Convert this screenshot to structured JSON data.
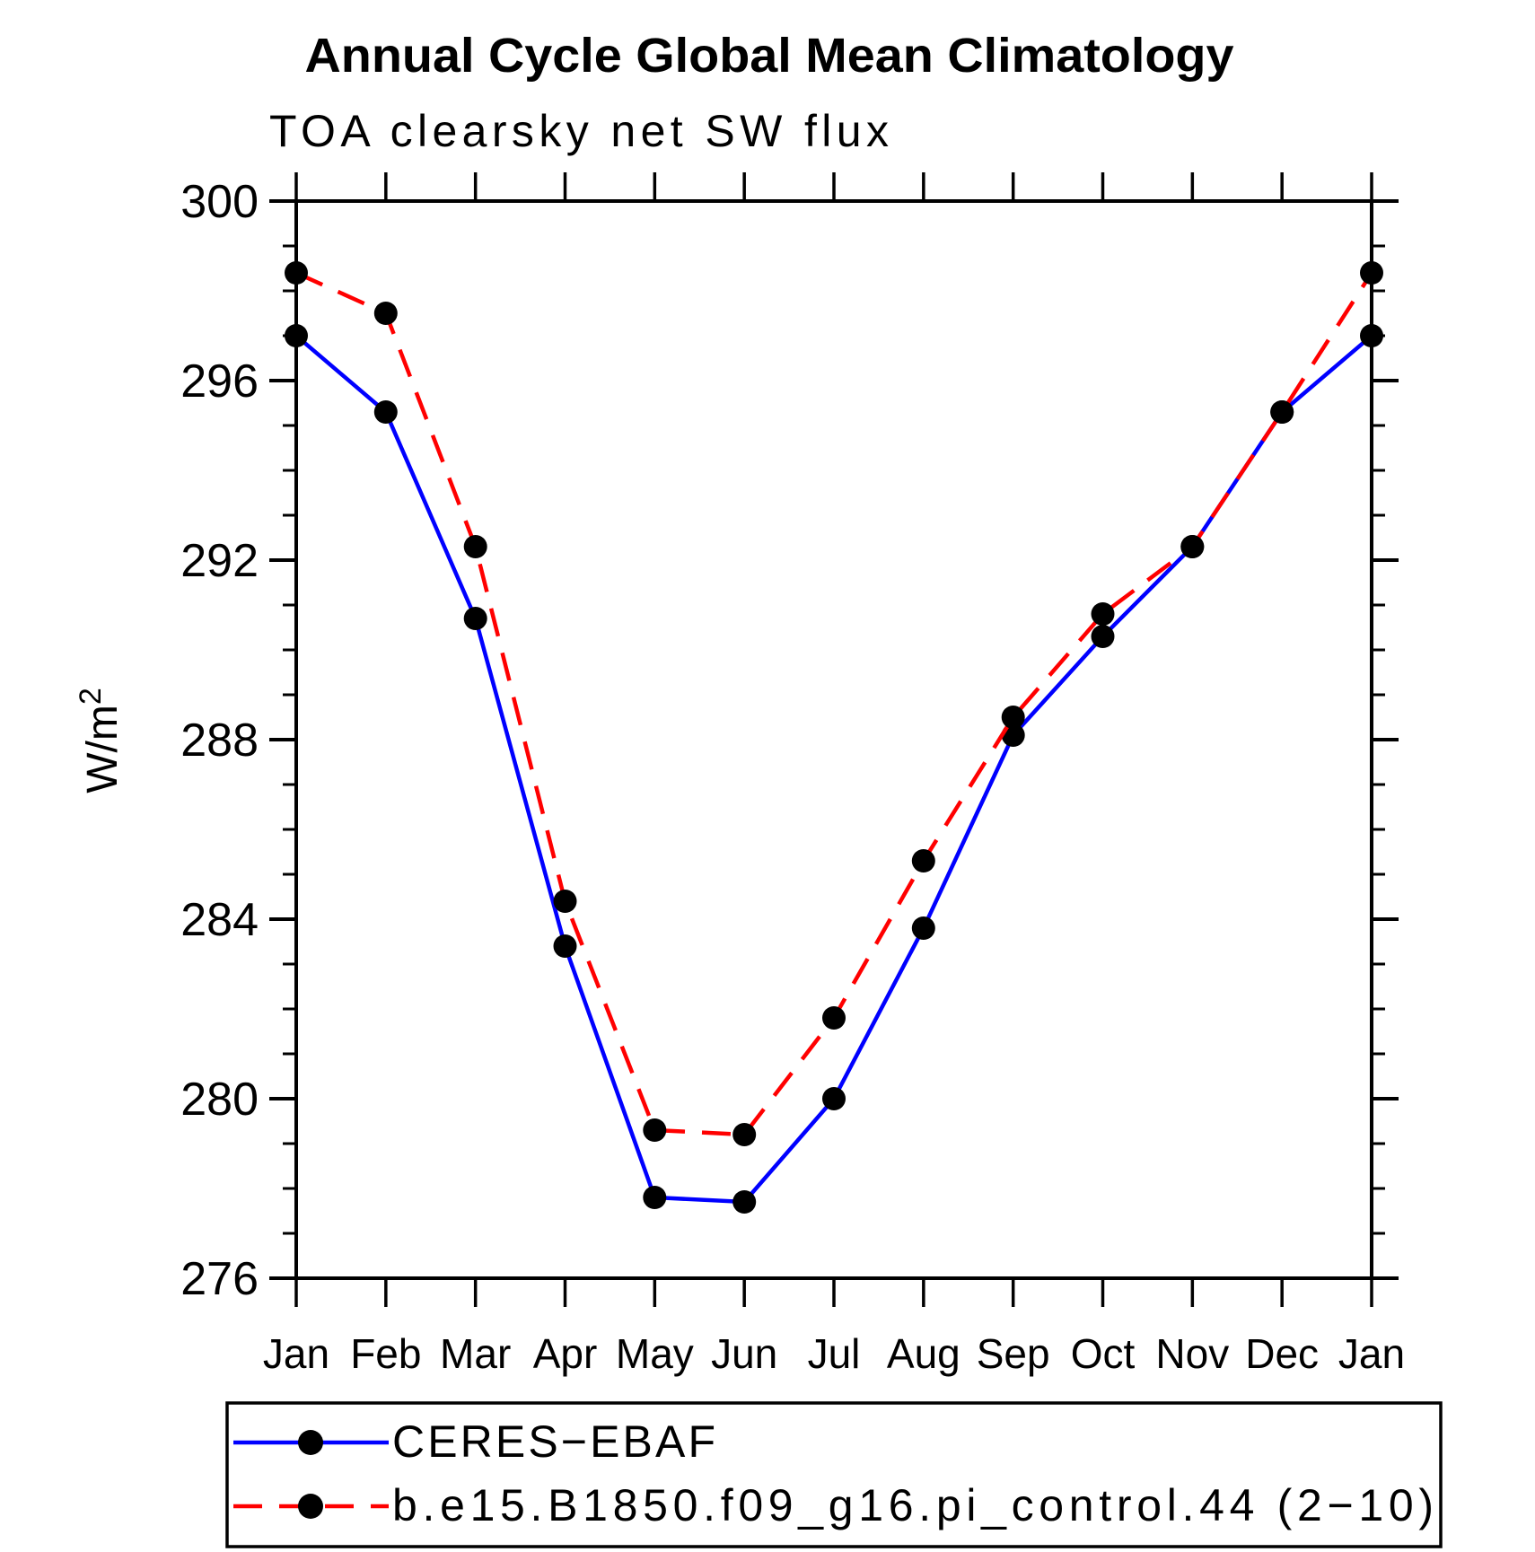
{
  "chart": {
    "ylabel_base": "W/m",
    "ylabel_sup": "2"
  },
  "chart_data": {
    "type": "line",
    "title": "Annual Cycle Global Mean Climatology",
    "subtitle": "TOA clearsky net SW flux",
    "ylabel": "W/m²",
    "xlabel": "",
    "categories": [
      "Jan",
      "Feb",
      "Mar",
      "Apr",
      "May",
      "Jun",
      "Jul",
      "Aug",
      "Sep",
      "Oct",
      "Nov",
      "Dec",
      "Jan"
    ],
    "series": [
      {
        "name": "CERES−EBAF",
        "line_style": "solid",
        "color": "#0000ff",
        "marker": "circle",
        "marker_color": "#000000",
        "values": [
          297.0,
          295.3,
          290.7,
          283.4,
          277.8,
          277.7,
          280.0,
          283.8,
          288.1,
          290.3,
          292.3,
          295.3,
          297.0
        ]
      },
      {
        "name": "b.e15.B1850.f09_g16.pi_control.44 (2−10)",
        "line_style": "dashed",
        "color": "#ff0000",
        "marker": "circle",
        "marker_color": "#000000",
        "values": [
          298.4,
          297.5,
          292.3,
          284.4,
          279.3,
          279.2,
          281.8,
          285.3,
          288.5,
          290.8,
          292.3,
          295.3,
          298.4
        ]
      }
    ],
    "ylim": [
      276,
      300
    ],
    "ytick_major_interval": 4,
    "ytick_minor_interval": 1,
    "ytick_labels": [
      "276",
      "280",
      "284",
      "288",
      "292",
      "296",
      "300"
    ],
    "grid": false,
    "legend_position": "bottom",
    "axis_color": "#000000",
    "background_color": "#ffffff"
  }
}
